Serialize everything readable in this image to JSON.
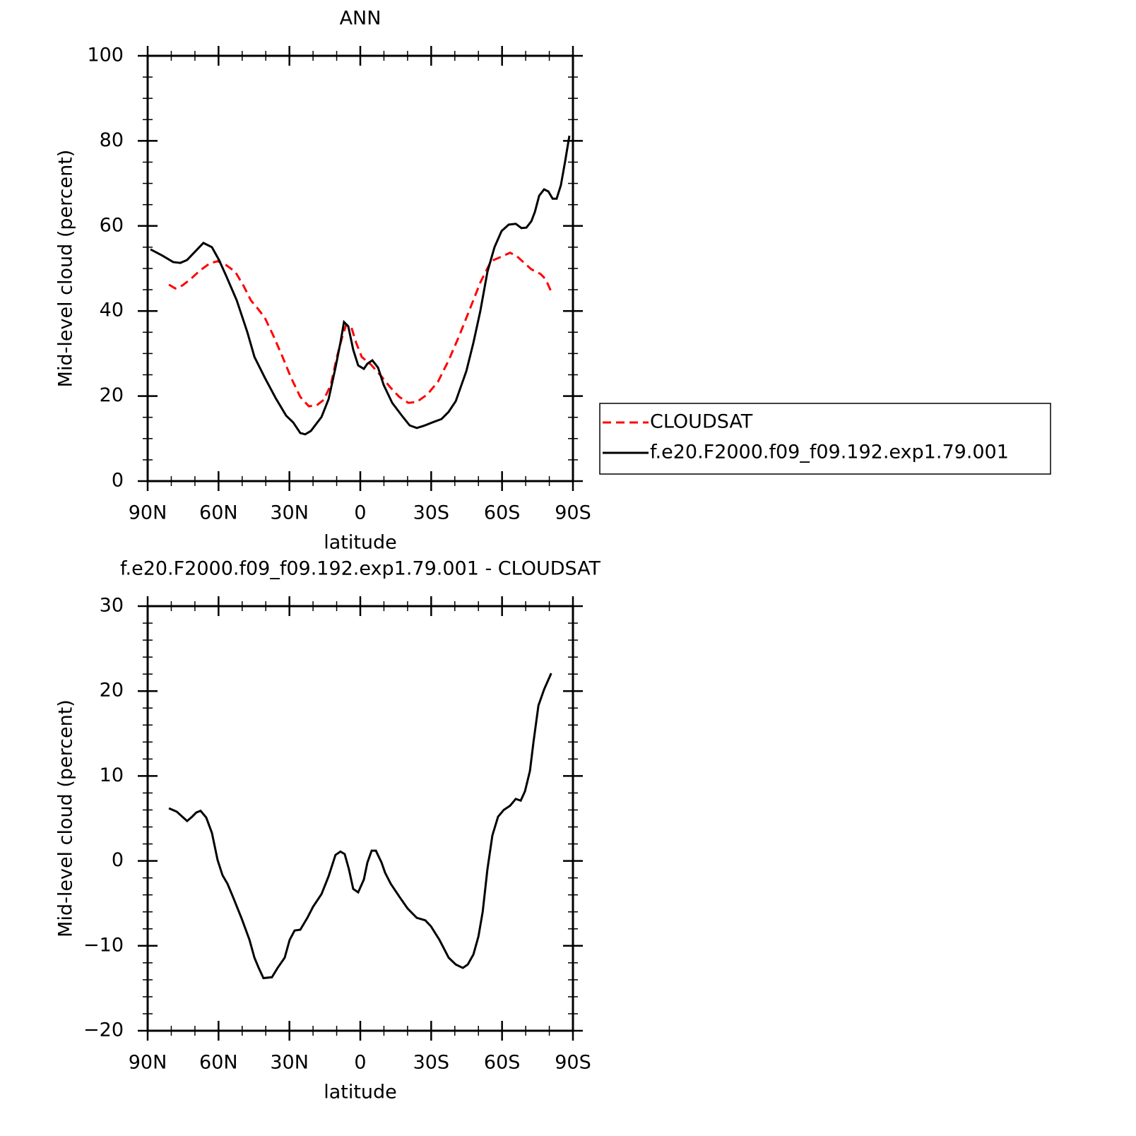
{
  "chart_data": [
    {
      "type": "line",
      "title": "ANN",
      "xlabel": "latitude",
      "ylabel": "Mid-level cloud (percent)",
      "xlim": [
        90,
        -90
      ],
      "xticks": [
        {
          "value": 90,
          "label": "90N"
        },
        {
          "value": 60,
          "label": "60N"
        },
        {
          "value": 30,
          "label": "30N"
        },
        0,
        {
          "value": -30,
          "label": "30S"
        },
        {
          "value": -60,
          "label": "60S"
        },
        {
          "value": -90,
          "label": "90S"
        }
      ],
      "xminorticks": [
        80,
        70,
        50,
        40,
        20,
        10,
        -10,
        -20,
        -40,
        -50,
        -70,
        -80
      ],
      "ylim": [
        0,
        100
      ],
      "yticks": [
        0,
        20,
        40,
        60,
        80,
        100
      ],
      "yminorticks": [
        5,
        10,
        15,
        25,
        30,
        35,
        45,
        50,
        55,
        65,
        70,
        75,
        85,
        90,
        95
      ],
      "legend": "right",
      "series": [
        {
          "name": "CLOUDSAT",
          "color": "#ff0000",
          "linestyle": "dashed",
          "x": [
            81.0,
            78.3,
            75.3,
            71.8,
            67.9,
            63.7,
            60.4,
            56.8,
            52.9,
            49.3,
            46.3,
            43.3,
            40.4,
            36.8,
            32.9,
            29.3,
            25.4,
            21.8,
            18.5,
            15.5,
            12.5,
            9.9,
            7.5,
            6.0,
            3.9,
            1.8,
            -0.6,
            -4.5,
            -9.0,
            -12.6,
            -16.5,
            -20.3,
            -23.9,
            -28.4,
            -32.9,
            -37.4,
            -41.9,
            -46.4,
            -50.8,
            -55.3,
            -59.8,
            -63.4,
            -66.4,
            -69.4,
            -72.4,
            -76.3,
            -78.4,
            -81.1
          ],
          "values": [
            46.2,
            45.3,
            46.0,
            47.5,
            49.5,
            51.2,
            51.7,
            50.8,
            49.2,
            45.8,
            42.5,
            40.5,
            38.4,
            34.2,
            29.2,
            24.3,
            19.8,
            17.6,
            17.8,
            19.1,
            22.6,
            29.2,
            34.2,
            36.7,
            36.4,
            32.6,
            29.2,
            27.4,
            24.6,
            22.1,
            19.8,
            18.4,
            18.6,
            20.4,
            23.4,
            28.4,
            34.2,
            40.5,
            46.7,
            51.7,
            52.8,
            53.7,
            52.8,
            51.3,
            49.8,
            48.7,
            47.5,
            44.2
          ]
        },
        {
          "name": "f.e20.F2000.f09_f09.192.exp1.79.001",
          "color": "#000000",
          "linestyle": "solid",
          "x": [
            88.8,
            83.7,
            79.2,
            76.2,
            73.3,
            66.4,
            62.8,
            59.8,
            56.8,
            52.3,
            47.8,
            44.8,
            40.4,
            35.9,
            31.4,
            28.4,
            25.4,
            23.3,
            20.9,
            16.4,
            13.4,
            10.5,
            8.4,
            6.9,
            5.1,
            3.0,
            0.9,
            -1.5,
            -3.0,
            -5.1,
            -7.5,
            -9.9,
            -13.5,
            -18.0,
            -20.9,
            -23.9,
            -26.9,
            -30.5,
            -34.4,
            -37.4,
            -40.4,
            -44.9,
            -47.9,
            -50.8,
            -53.8,
            -56.8,
            -59.8,
            -62.8,
            -65.8,
            -68.2,
            -70.3,
            -72.4,
            -73.9,
            -75.7,
            -77.8,
            -79.6,
            -81.4,
            -83.1,
            -84.9,
            -86.7,
            -88.5
          ],
          "values": [
            54.5,
            53.0,
            51.5,
            51.3,
            52.0,
            56.0,
            55.0,
            52.0,
            48.3,
            42.5,
            35.0,
            29.2,
            24.3,
            19.6,
            15.4,
            13.8,
            11.3,
            11.0,
            11.8,
            15.1,
            19.3,
            26.7,
            32.6,
            37.4,
            36.4,
            30.9,
            27.2,
            26.4,
            27.6,
            28.4,
            26.7,
            22.6,
            18.4,
            15.1,
            13.1,
            12.5,
            13.0,
            13.8,
            14.6,
            16.3,
            18.8,
            25.9,
            32.6,
            40.0,
            49.2,
            55.0,
            58.8,
            60.3,
            60.5,
            59.5,
            59.6,
            61.1,
            63.3,
            67.1,
            68.6,
            68.1,
            66.4,
            66.4,
            69.6,
            75.2,
            81.2
          ]
        }
      ]
    },
    {
      "type": "line",
      "title": "f.e20.F2000.f09_f09.192.exp1.79.001 - CLOUDSAT",
      "xlabel": "latitude",
      "ylabel": "Mid-level cloud (percent)",
      "xlim": [
        90,
        -90
      ],
      "xticks": [
        {
          "value": 90,
          "label": "90N"
        },
        {
          "value": 60,
          "label": "60N"
        },
        {
          "value": 30,
          "label": "30N"
        },
        0,
        {
          "value": -30,
          "label": "30S"
        },
        {
          "value": -60,
          "label": "60S"
        },
        {
          "value": -90,
          "label": "90S"
        }
      ],
      "xminorticks": [
        80,
        70,
        50,
        40,
        20,
        10,
        -10,
        -20,
        -40,
        -50,
        -70,
        -80
      ],
      "ylim": [
        -20,
        30
      ],
      "yticks": [
        {
          "value": -20,
          "label": "−20"
        },
        {
          "value": -10,
          "label": "−10"
        },
        0,
        10,
        20,
        30
      ],
      "yminorticks": [
        -18,
        -16,
        -14,
        -12,
        -8,
        -6,
        -4,
        -2,
        2,
        4,
        6,
        8,
        12,
        14,
        16,
        18,
        22,
        24,
        26,
        28
      ],
      "series": [
        {
          "color": "#000000",
          "linestyle": "solid",
          "x": [
            81.0,
            77.7,
            75.3,
            73.3,
            71.2,
            69.4,
            67.6,
            65.2,
            62.8,
            60.4,
            58.3,
            56.2,
            53.8,
            50.2,
            46.9,
            44.8,
            43.0,
            41.0,
            37.4,
            35.0,
            32.0,
            29.9,
            27.8,
            25.4,
            22.4,
            20.0,
            16.4,
            13.4,
            10.5,
            8.4,
            6.6,
            4.8,
            3.0,
            0.9,
            -1.5,
            -3.0,
            -4.8,
            -6.6,
            -9.0,
            -10.5,
            -12.9,
            -16.5,
            -20.0,
            -23.9,
            -27.5,
            -29.9,
            -33.5,
            -37.4,
            -40.4,
            -43.4,
            -45.5,
            -47.9,
            -50.0,
            -51.8,
            -53.8,
            -55.9,
            -58.3,
            -60.7,
            -63.4,
            -65.8,
            -67.9,
            -69.7,
            -71.8,
            -73.3,
            -75.4,
            -77.8,
            -80.8
          ],
          "values": [
            6.2,
            5.8,
            5.2,
            4.7,
            5.2,
            5.7,
            5.9,
            5.1,
            3.3,
            0.1,
            -1.7,
            -2.7,
            -4.3,
            -6.8,
            -9.3,
            -11.4,
            -12.6,
            -13.8,
            -13.7,
            -12.6,
            -11.4,
            -9.3,
            -8.2,
            -8.1,
            -6.7,
            -5.4,
            -3.9,
            -1.8,
            0.7,
            1.1,
            0.8,
            -1.0,
            -3.3,
            -3.7,
            -2.2,
            -0.2,
            1.2,
            1.2,
            -0.2,
            -1.4,
            -2.7,
            -4.2,
            -5.6,
            -6.7,
            -7.0,
            -7.7,
            -9.3,
            -11.4,
            -12.2,
            -12.6,
            -12.2,
            -11.0,
            -8.9,
            -6.0,
            -1.0,
            3.0,
            5.2,
            6.0,
            6.5,
            7.3,
            7.1,
            8.2,
            10.6,
            14.0,
            18.3,
            20.2,
            22.1
          ]
        }
      ]
    }
  ]
}
